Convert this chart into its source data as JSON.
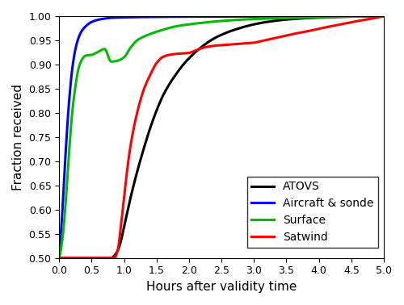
{
  "title": "",
  "xlabel": "Hours after validity time",
  "ylabel": "Fraction received",
  "xlim": [
    0,
    5
  ],
  "ylim": [
    0.5,
    1.0
  ],
  "xticks": [
    0,
    0.5,
    1.0,
    1.5,
    2.0,
    2.5,
    3.0,
    3.5,
    4.0,
    4.5,
    5.0
  ],
  "yticks": [
    0.5,
    0.55,
    0.6,
    0.65,
    0.7,
    0.75,
    0.8,
    0.85,
    0.9,
    0.95,
    1.0
  ],
  "series": {
    "ATOVS": {
      "color": "#000000",
      "linewidth": 2.2,
      "x": [
        0.0,
        0.8,
        0.85,
        0.9,
        0.95,
        1.0,
        1.1,
        1.2,
        1.3,
        1.4,
        1.5,
        1.6,
        1.7,
        1.8,
        1.9,
        2.0,
        2.2,
        2.4,
        2.6,
        2.8,
        3.0,
        3.2,
        3.5,
        4.0,
        4.5,
        5.0
      ],
      "y": [
        0.5,
        0.5,
        0.505,
        0.515,
        0.535,
        0.565,
        0.625,
        0.678,
        0.725,
        0.768,
        0.805,
        0.836,
        0.86,
        0.88,
        0.898,
        0.913,
        0.937,
        0.955,
        0.967,
        0.976,
        0.983,
        0.988,
        0.993,
        0.997,
        0.999,
        1.0
      ]
    },
    "Aircraft & sonde": {
      "color": "#0000ff",
      "linewidth": 2.2,
      "x": [
        0.0,
        0.05,
        0.1,
        0.15,
        0.2,
        0.25,
        0.3,
        0.35,
        0.4,
        0.45,
        0.5,
        0.6,
        0.7,
        0.8,
        1.0,
        1.5,
        2.0,
        3.0,
        5.0
      ],
      "y": [
        0.5,
        0.6,
        0.72,
        0.82,
        0.89,
        0.932,
        0.956,
        0.97,
        0.978,
        0.984,
        0.988,
        0.9925,
        0.995,
        0.9965,
        0.9975,
        0.9985,
        0.999,
        0.9995,
        1.0
      ]
    },
    "Surface": {
      "color": "#00bb00",
      "linewidth": 2.2,
      "x": [
        0.0,
        0.05,
        0.1,
        0.15,
        0.2,
        0.25,
        0.3,
        0.35,
        0.4,
        0.5,
        0.6,
        0.7,
        0.8,
        0.9,
        1.0,
        1.1,
        1.2,
        1.4,
        1.6,
        1.8,
        2.0,
        2.5,
        3.0,
        3.5,
        4.0,
        5.0
      ],
      "y": [
        0.5,
        0.54,
        0.615,
        0.715,
        0.8,
        0.855,
        0.893,
        0.91,
        0.918,
        0.92,
        0.926,
        0.932,
        0.906,
        0.908,
        0.915,
        0.935,
        0.95,
        0.963,
        0.972,
        0.979,
        0.983,
        0.99,
        0.994,
        0.996,
        0.998,
        1.0
      ]
    },
    "Satwind": {
      "color": "#ff0000",
      "linewidth": 2.2,
      "x": [
        0.0,
        0.85,
        0.9,
        0.95,
        1.0,
        1.05,
        1.1,
        1.2,
        1.3,
        1.4,
        1.5,
        1.6,
        1.7,
        1.8,
        1.9,
        2.0,
        2.1,
        2.2,
        2.4,
        2.6,
        2.8,
        3.0,
        3.1,
        3.2,
        3.3,
        3.4,
        3.5,
        3.6,
        3.8,
        4.0,
        4.3,
        4.6,
        4.9,
        5.0
      ],
      "y": [
        0.5,
        0.5,
        0.515,
        0.565,
        0.625,
        0.685,
        0.733,
        0.8,
        0.847,
        0.878,
        0.903,
        0.916,
        0.92,
        0.922,
        0.923,
        0.924,
        0.929,
        0.934,
        0.939,
        0.941,
        0.943,
        0.945,
        0.948,
        0.951,
        0.954,
        0.957,
        0.96,
        0.963,
        0.968,
        0.974,
        0.982,
        0.99,
        0.997,
        1.0
      ]
    }
  },
  "legend_loc": "lower right",
  "figsize": [
    5.0,
    3.78
  ],
  "dpi": 100
}
